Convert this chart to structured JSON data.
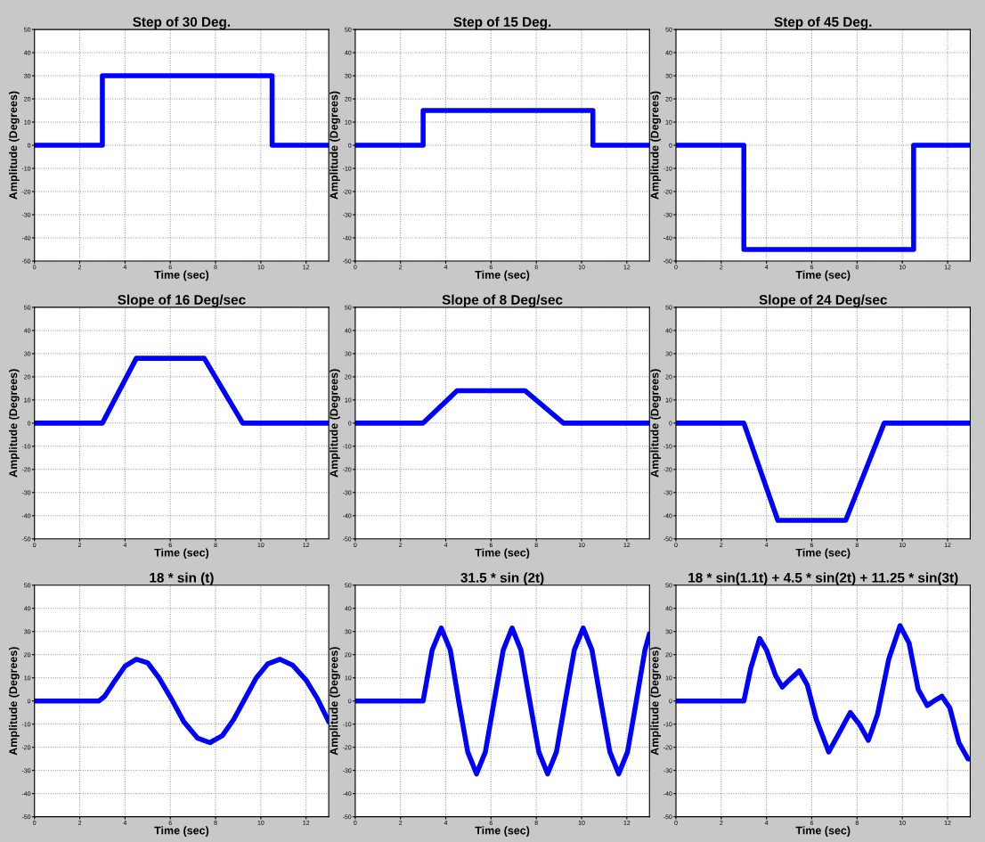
{
  "chart_data": [
    {
      "type": "line",
      "title": "Step of 30 Deg.",
      "xlabel": "Time (sec)",
      "ylabel": "Amplitude (Degrees)",
      "color": "#0000ff",
      "xlim": [
        0,
        13
      ],
      "ylim": [
        -50,
        50
      ],
      "xticks": [
        0,
        2,
        4,
        6,
        8,
        10,
        12
      ],
      "yticks": [
        -50,
        -40,
        -30,
        -20,
        -10,
        0,
        10,
        20,
        30,
        40,
        50
      ],
      "grid": true,
      "x": [
        0,
        3,
        3,
        10.5,
        10.5,
        13
      ],
      "values": [
        0,
        0,
        30,
        30,
        0,
        0
      ]
    },
    {
      "type": "line",
      "title": "Step of 15 Deg.",
      "xlabel": "Time (sec)",
      "ylabel": "Amplitude (Degrees)",
      "color": "#0000ff",
      "xlim": [
        0,
        13
      ],
      "ylim": [
        -50,
        50
      ],
      "xticks": [
        0,
        2,
        4,
        6,
        8,
        10,
        12
      ],
      "yticks": [
        -50,
        -40,
        -30,
        -20,
        -10,
        0,
        10,
        20,
        30,
        40,
        50
      ],
      "grid": true,
      "x": [
        0,
        3,
        3,
        10.5,
        10.5,
        13
      ],
      "values": [
        0,
        0,
        15,
        15,
        0,
        0
      ]
    },
    {
      "type": "line",
      "title": "Step of 45 Deg.",
      "xlabel": "Time (sec)",
      "ylabel": "Amplitude (Degrees)",
      "color": "#0000ff",
      "xlim": [
        0,
        13
      ],
      "ylim": [
        -50,
        50
      ],
      "xticks": [
        0,
        2,
        4,
        6,
        8,
        10,
        12
      ],
      "yticks": [
        -50,
        -40,
        -30,
        -20,
        -10,
        0,
        10,
        20,
        30,
        40,
        50
      ],
      "grid": true,
      "x": [
        0,
        3,
        3,
        10.5,
        10.5,
        13
      ],
      "values": [
        0,
        0,
        -45,
        -45,
        0,
        0
      ]
    },
    {
      "type": "line",
      "title": "Slope of 16 Deg/sec",
      "xlabel": "Time (sec)",
      "ylabel": "Amplitude (Degrees)",
      "color": "#0000ff",
      "xlim": [
        0,
        13
      ],
      "ylim": [
        -50,
        50
      ],
      "xticks": [
        0,
        2,
        4,
        6,
        8,
        10,
        12
      ],
      "yticks": [
        -50,
        -40,
        -30,
        -20,
        -10,
        0,
        10,
        20,
        30,
        40,
        50
      ],
      "grid": true,
      "x": [
        0,
        3,
        4.5,
        7.5,
        9.2,
        13
      ],
      "values": [
        0,
        0,
        28,
        28,
        0,
        0
      ]
    },
    {
      "type": "line",
      "title": "Slope of 8 Deg/sec",
      "xlabel": "Time (sec)",
      "ylabel": "Amplitude (Degrees)",
      "color": "#0000ff",
      "xlim": [
        0,
        13
      ],
      "ylim": [
        -50,
        50
      ],
      "xticks": [
        0,
        2,
        4,
        6,
        8,
        10,
        12
      ],
      "yticks": [
        -50,
        -40,
        -30,
        -20,
        -10,
        0,
        10,
        20,
        30,
        40,
        50
      ],
      "grid": true,
      "x": [
        0,
        3,
        4.5,
        7.5,
        9.2,
        13
      ],
      "values": [
        0,
        0,
        14,
        14,
        0,
        0
      ]
    },
    {
      "type": "line",
      "title": "Slope of 24 Deg/sec",
      "xlabel": "Time (sec)",
      "ylabel": "Amplitude (Degrees)",
      "color": "#0000ff",
      "xlim": [
        0,
        13
      ],
      "ylim": [
        -50,
        50
      ],
      "xticks": [
        0,
        2,
        4,
        6,
        8,
        10,
        12
      ],
      "yticks": [
        -50,
        -40,
        -30,
        -20,
        -10,
        0,
        10,
        20,
        30,
        40,
        50
      ],
      "grid": true,
      "x": [
        0,
        3,
        4.5,
        7.5,
        9.2,
        13
      ],
      "values": [
        0,
        0,
        -42,
        -42,
        0,
        0
      ]
    },
    {
      "type": "line",
      "title": "18 * sin (t)",
      "xlabel": "Time (sec)",
      "ylabel": "Amplitude (Degrees)",
      "color": "#0000ff",
      "xlim": [
        0,
        13
      ],
      "ylim": [
        -50,
        50
      ],
      "xticks": [
        0,
        2,
        4,
        6,
        8,
        10,
        12
      ],
      "yticks": [
        -50,
        -40,
        -30,
        -20,
        -10,
        0,
        10,
        20,
        30,
        40,
        50
      ],
      "grid": true,
      "x": [
        0,
        2.85,
        3.1,
        3.5,
        4.0,
        4.5,
        5.0,
        5.5,
        6.1,
        6.6,
        7.2,
        7.75,
        8.3,
        8.8,
        9.3,
        9.8,
        10.3,
        10.85,
        11.4,
        12.0,
        12.5,
        13
      ],
      "values": [
        0,
        0,
        2,
        8,
        15,
        18,
        16.5,
        10,
        0,
        -9,
        -16,
        -18,
        -15,
        -8,
        1,
        10,
        16,
        18,
        15.5,
        9,
        1,
        -9
      ]
    },
    {
      "type": "line",
      "title": "31.5 * sin (2t)",
      "xlabel": "Time (sec)",
      "ylabel": "Amplitude (Degrees)",
      "color": "#0000ff",
      "xlim": [
        0,
        13
      ],
      "ylim": [
        -50,
        50
      ],
      "xticks": [
        0,
        2,
        4,
        6,
        8,
        10,
        12
      ],
      "yticks": [
        -50,
        -40,
        -30,
        -20,
        -10,
        0,
        10,
        20,
        30,
        40,
        50
      ],
      "grid": true,
      "x": [
        0,
        3,
        3.4,
        3.8,
        4.2,
        4.57,
        4.97,
        5.36,
        5.75,
        6.14,
        6.54,
        6.93,
        7.32,
        7.71,
        8.11,
        8.5,
        8.89,
        9.28,
        9.68,
        10.07,
        10.46,
        10.85,
        11.25,
        11.64,
        12.03,
        12.42,
        12.8,
        13
      ],
      "values": [
        0,
        0,
        22,
        31.5,
        22,
        0,
        -22,
        -31.5,
        -22,
        0,
        22,
        31.5,
        22,
        0,
        -22,
        -31.5,
        -22,
        0,
        22,
        31.5,
        22,
        0,
        -22,
        -31.5,
        -22,
        0,
        22,
        29
      ]
    },
    {
      "type": "line",
      "title": "18 * sin(1.1t) + 4.5 * sin(2t) + 11.25 * sin(3t)",
      "xlabel": "Time (sec)",
      "ylabel": "Amplitude (Degrees)",
      "color": "#0000ff",
      "xlim": [
        0,
        13
      ],
      "ylim": [
        -50,
        50
      ],
      "xticks": [
        0,
        2,
        4,
        6,
        8,
        10,
        12
      ],
      "yticks": [
        -50,
        -40,
        -30,
        -20,
        -10,
        0,
        10,
        20,
        30,
        40,
        50
      ],
      "grid": true,
      "x": [
        0,
        3,
        3.3,
        3.7,
        4.0,
        4.4,
        4.7,
        5.0,
        5.45,
        5.8,
        6.2,
        6.75,
        7.2,
        7.7,
        8.1,
        8.5,
        8.9,
        9.4,
        9.9,
        10.3,
        10.7,
        11.1,
        11.4,
        11.75,
        12.1,
        12.5,
        12.9,
        13
      ],
      "values": [
        0,
        0,
        14,
        27,
        22,
        11,
        6,
        9,
        13,
        7,
        -8,
        -22,
        -14,
        -5,
        -10,
        -17,
        -6,
        18,
        32.5,
        25,
        5,
        -2,
        0,
        2,
        -3,
        -18,
        -25,
        -25
      ]
    }
  ]
}
